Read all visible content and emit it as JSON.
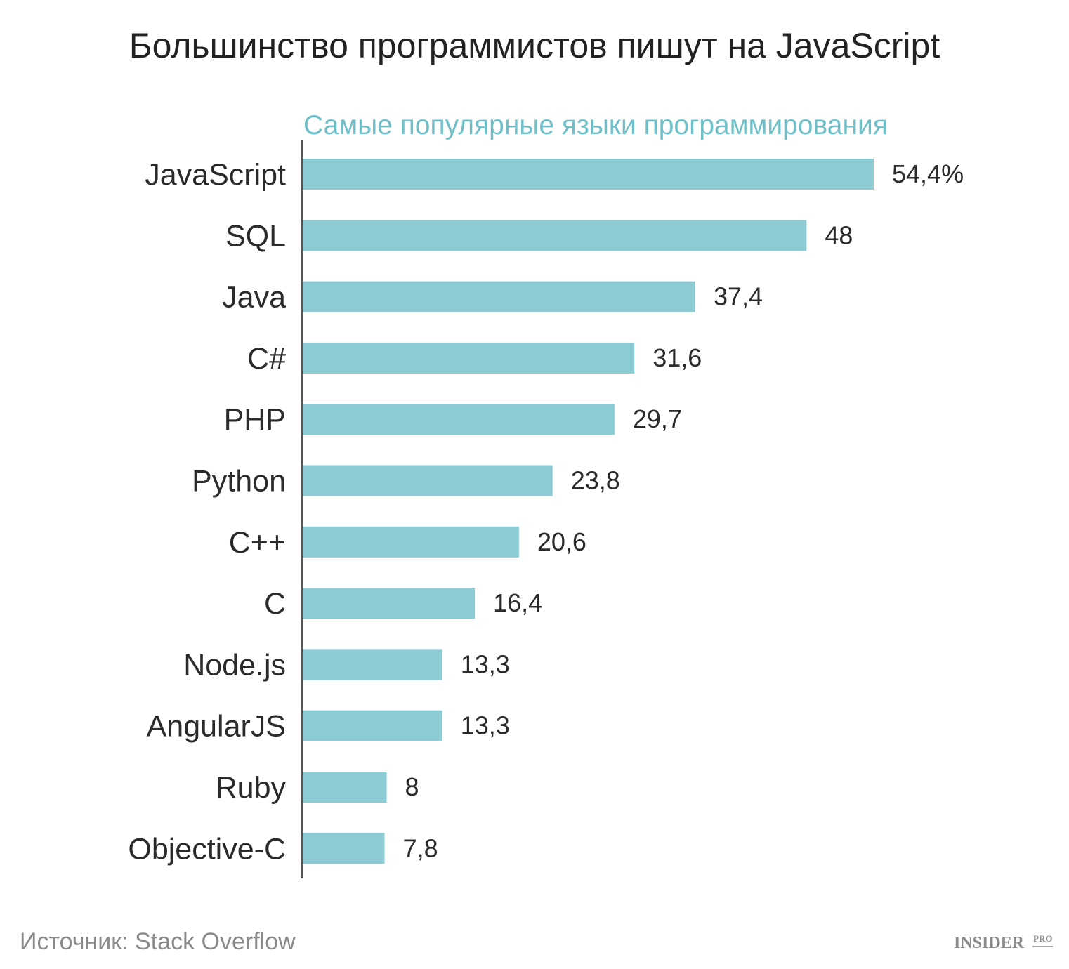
{
  "chart_data": {
    "type": "bar",
    "orientation": "horizontal",
    "title": "Большинство программистов пишут на JavaScript",
    "subtitle": "Самые популярные языки программирования",
    "categories": [
      "JavaScript",
      "SQL",
      "Java",
      "C#",
      "PHP",
      "Python",
      "C++",
      "C",
      "Node.js",
      "AngularJS",
      "Ruby",
      "Objective-C"
    ],
    "values": [
      54.4,
      48,
      37.4,
      31.6,
      29.7,
      23.8,
      20.6,
      16.4,
      13.3,
      13.3,
      8,
      7.8
    ],
    "value_labels": [
      "54,4%",
      "48",
      "37,4",
      "31,6",
      "29,7",
      "23,8",
      "20,6",
      "16,4",
      "13,3",
      "13,3",
      "8",
      "7,8"
    ],
    "xlim": [
      0,
      54.4
    ],
    "grid": false,
    "legend": "none",
    "bar_color": "#8ccbd4",
    "subtitle_color": "#6fbfc9",
    "text_color": "#2b2b2b"
  },
  "footer": {
    "source": "Источник: Stack Overflow",
    "logo_main": "INSIDER",
    "logo_suffix": "PRO"
  }
}
